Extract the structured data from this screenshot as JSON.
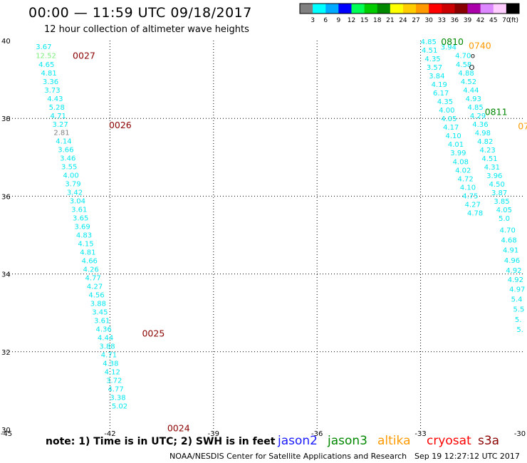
{
  "header": {
    "title": "00:00 — 11:59 UTC 09/18/2017",
    "subtitle": "12 hour collection of altimeter wave heights"
  },
  "footer": {
    "note": "note: 1) Time is in UTC; 2) SWH is in feet",
    "credit": "NOAA/NESDIS Center for Satellite Applications and Research",
    "timestamp": "Sep 19 12:27:12 UTC 2017"
  },
  "satellites": [
    {
      "name": "jason2",
      "color": "#1a1aff"
    },
    {
      "name": "jason3",
      "color": "#008800"
    },
    {
      "name": "altika",
      "color": "#ff9900"
    },
    {
      "name": "cryosat",
      "color": "#ff0000"
    },
    {
      "name": "s3a",
      "color": "#8b0000"
    }
  ],
  "chart_data": {
    "type": "scatter",
    "title": "00:00 — 11:59 UTC 09/18/2017",
    "subtitle": "12 hour collection of altimeter wave heights",
    "xlim": [
      -45,
      -30
    ],
    "ylim": [
      30,
      40
    ],
    "x_ticks": [
      "-45",
      "-42",
      "-39",
      "-36",
      "-33",
      "-30"
    ],
    "y_ticks": [
      "40",
      "38",
      "36",
      "34",
      "32",
      "30"
    ],
    "grid": true,
    "legend": {
      "unit": "(ft)",
      "bins": [
        "3",
        "6",
        "9",
        "12",
        "15",
        "18",
        "21",
        "24",
        "27",
        "30",
        "33",
        "36",
        "39",
        "42",
        "45",
        "70"
      ],
      "colors": [
        "#808080",
        "#00ffff",
        "#00aaff",
        "#0000ff",
        "#00ff55",
        "#00cc00",
        "#008800",
        "#ffff00",
        "#ffcc00",
        "#ff9900",
        "#ff0000",
        "#cc0000",
        "#880000",
        "#aa00aa",
        "#dd88ff",
        "#ffccff",
        "#000000"
      ]
    },
    "track_labels": [
      {
        "text": "0027",
        "x": -43.08,
        "y": 39.62,
        "color": "#8b0000"
      },
      {
        "text": "0026",
        "x": -42.03,
        "y": 37.84,
        "color": "#8b0000"
      },
      {
        "text": "0025",
        "x": -41.07,
        "y": 32.48,
        "color": "#8b0000"
      },
      {
        "text": "0024",
        "x": -40.34,
        "y": 30.05,
        "color": "#8b0000"
      },
      {
        "text": "0810",
        "x": -32.41,
        "y": 39.98,
        "color": "#008800"
      },
      {
        "text": "0811",
        "x": -31.14,
        "y": 38.18,
        "color": "#008800"
      },
      {
        "text": "0740",
        "x": -31.61,
        "y": 39.88,
        "color": "#ff9900"
      },
      {
        "text": "07",
        "x": -30.18,
        "y": 37.81,
        "color": "#ff9900"
      }
    ],
    "series": [
      {
        "name": "s3a",
        "color": "#00e8f0",
        "points": [
          {
            "x": -44.15,
            "y": 39.85,
            "v": "3.67"
          },
          {
            "x": -44.15,
            "y": 39.62,
            "v": "12.52",
            "color": "#7cf07c"
          },
          {
            "x": -44.07,
            "y": 39.4,
            "v": "4.65"
          },
          {
            "x": -44.0,
            "y": 39.18,
            "v": "4.81"
          },
          {
            "x": -43.95,
            "y": 38.96,
            "v": "3.36"
          },
          {
            "x": -43.9,
            "y": 38.74,
            "v": "3.73"
          },
          {
            "x": -43.82,
            "y": 38.52,
            "v": "4.43"
          },
          {
            "x": -43.77,
            "y": 38.3,
            "v": "5.28"
          },
          {
            "x": -43.73,
            "y": 38.08,
            "v": "4.71"
          },
          {
            "x": -43.67,
            "y": 37.86,
            "v": "3.27"
          },
          {
            "x": -43.63,
            "y": 37.65,
            "v": "2.81",
            "color": "#808080"
          },
          {
            "x": -43.57,
            "y": 37.43,
            "v": "4.14"
          },
          {
            "x": -43.51,
            "y": 37.21,
            "v": "3.66"
          },
          {
            "x": -43.45,
            "y": 36.99,
            "v": "3.46"
          },
          {
            "x": -43.41,
            "y": 36.77,
            "v": "3.55"
          },
          {
            "x": -43.36,
            "y": 36.55,
            "v": "4.00"
          },
          {
            "x": -43.3,
            "y": 36.33,
            "v": "3.79"
          },
          {
            "x": -43.25,
            "y": 36.11,
            "v": "3.42"
          },
          {
            "x": -43.17,
            "y": 35.89,
            "v": "3.04"
          },
          {
            "x": -43.12,
            "y": 35.67,
            "v": "3.61"
          },
          {
            "x": -43.08,
            "y": 35.45,
            "v": "3.65"
          },
          {
            "x": -43.03,
            "y": 35.23,
            "v": "3.69"
          },
          {
            "x": -42.98,
            "y": 35.01,
            "v": "4.83"
          },
          {
            "x": -42.93,
            "y": 34.79,
            "v": "4.15"
          },
          {
            "x": -42.87,
            "y": 34.57,
            "v": "4.81"
          },
          {
            "x": -42.82,
            "y": 34.35,
            "v": "4.66"
          },
          {
            "x": -42.78,
            "y": 34.13,
            "v": "4.26"
          },
          {
            "x": -42.72,
            "y": 33.91,
            "v": "4.77"
          },
          {
            "x": -42.67,
            "y": 33.69,
            "v": "4.27"
          },
          {
            "x": -42.62,
            "y": 33.47,
            "v": "4.56"
          },
          {
            "x": -42.57,
            "y": 33.25,
            "v": "3.88"
          },
          {
            "x": -42.52,
            "y": 33.03,
            "v": "3.45"
          },
          {
            "x": -42.46,
            "y": 32.81,
            "v": "3.61"
          },
          {
            "x": -42.41,
            "y": 32.59,
            "v": "4.36"
          },
          {
            "x": -42.36,
            "y": 32.37,
            "v": "4.44"
          },
          {
            "x": -42.31,
            "y": 32.15,
            "v": "3.88"
          },
          {
            "x": -42.26,
            "y": 31.93,
            "v": "4.71"
          },
          {
            "x": -42.21,
            "y": 31.71,
            "v": "4.38"
          },
          {
            "x": -42.16,
            "y": 31.49,
            "v": "4.12"
          },
          {
            "x": -42.11,
            "y": 31.27,
            "v": "3.72"
          },
          {
            "x": -42.06,
            "y": 31.05,
            "v": "4.77"
          },
          {
            "x": -42.0,
            "y": 30.83,
            "v": "3.38"
          },
          {
            "x": -41.95,
            "y": 30.61,
            "v": "5.02"
          }
        ]
      },
      {
        "name": "jason3",
        "color": "#00e8f0",
        "points": [
          {
            "x": -33.0,
            "y": 39.98,
            "v": "4.85"
          },
          {
            "x": -32.97,
            "y": 39.76,
            "v": "4.51"
          },
          {
            "x": -32.88,
            "y": 39.54,
            "v": "4.35"
          },
          {
            "x": -32.83,
            "y": 39.32,
            "v": "3.57"
          },
          {
            "x": -32.76,
            "y": 39.1,
            "v": "3.84"
          },
          {
            "x": -32.69,
            "y": 38.88,
            "v": "4.19"
          },
          {
            "x": -32.64,
            "y": 38.66,
            "v": "6.17"
          },
          {
            "x": -32.52,
            "y": 38.44,
            "v": "4.35"
          },
          {
            "x": -32.47,
            "y": 38.22,
            "v": "4.00"
          },
          {
            "x": -32.41,
            "y": 38.0,
            "v": "4.05"
          },
          {
            "x": -32.35,
            "y": 37.78,
            "v": "4.17"
          },
          {
            "x": -32.28,
            "y": 37.56,
            "v": "4.10"
          },
          {
            "x": -32.21,
            "y": 37.34,
            "v": "4.01"
          },
          {
            "x": -32.14,
            "y": 37.12,
            "v": "3.99"
          },
          {
            "x": -32.07,
            "y": 36.9,
            "v": "4.08"
          },
          {
            "x": -32.0,
            "y": 36.68,
            "v": "4.02"
          },
          {
            "x": -31.93,
            "y": 36.46,
            "v": "4.72"
          },
          {
            "x": -31.86,
            "y": 36.24,
            "v": "4.10"
          },
          {
            "x": -31.79,
            "y": 36.02,
            "v": "4.75"
          },
          {
            "x": -31.72,
            "y": 35.8,
            "v": "4.27"
          },
          {
            "x": -31.65,
            "y": 35.58,
            "v": "4.78"
          }
        ]
      },
      {
        "name": "altika",
        "color": "#00e8f0",
        "points": [
          {
            "x": -32.42,
            "y": 39.84,
            "v": "3.94"
          },
          {
            "x": -32.0,
            "y": 39.62,
            "v": "4.70"
          },
          {
            "x": -31.98,
            "y": 39.4,
            "v": "4.58"
          },
          {
            "x": -31.91,
            "y": 39.18,
            "v": "4.88"
          },
          {
            "x": -31.84,
            "y": 38.96,
            "v": "4.52"
          },
          {
            "x": -31.77,
            "y": 38.74,
            "v": "4.44"
          },
          {
            "x": -31.7,
            "y": 38.52,
            "v": "4.93"
          },
          {
            "x": -31.64,
            "y": 38.3,
            "v": "4.85"
          },
          {
            "x": -31.57,
            "y": 38.08,
            "v": "4.29"
          },
          {
            "x": -31.5,
            "y": 37.86,
            "v": "4.36"
          },
          {
            "x": -31.43,
            "y": 37.64,
            "v": "4.98"
          },
          {
            "x": -31.36,
            "y": 37.42,
            "v": "4.82"
          },
          {
            "x": -31.29,
            "y": 37.2,
            "v": "4.23"
          },
          {
            "x": -31.23,
            "y": 36.98,
            "v": "4.51"
          },
          {
            "x": -31.16,
            "y": 36.76,
            "v": "4.31"
          },
          {
            "x": -31.09,
            "y": 36.54,
            "v": "3.96"
          },
          {
            "x": -31.02,
            "y": 36.32,
            "v": "4.50"
          },
          {
            "x": -30.95,
            "y": 36.1,
            "v": "3.87"
          },
          {
            "x": -30.88,
            "y": 35.88,
            "v": "3.85"
          },
          {
            "x": -30.81,
            "y": 35.66,
            "v": "4.05"
          },
          {
            "x": -30.74,
            "y": 35.44,
            "v": "5.0"
          },
          {
            "x": -30.71,
            "y": 35.14,
            "v": "4.70"
          },
          {
            "x": -30.67,
            "y": 34.88,
            "v": "4.68"
          },
          {
            "x": -30.62,
            "y": 34.62,
            "v": "4.91"
          },
          {
            "x": -30.58,
            "y": 34.36,
            "v": "4.96"
          },
          {
            "x": -30.53,
            "y": 34.1,
            "v": "4.92"
          },
          {
            "x": -30.48,
            "y": 33.86,
            "v": "4.92"
          },
          {
            "x": -30.43,
            "y": 33.62,
            "v": "4.97"
          },
          {
            "x": -30.38,
            "y": 33.36,
            "v": "5.4"
          },
          {
            "x": -30.32,
            "y": 33.1,
            "v": "5.5"
          },
          {
            "x": -30.27,
            "y": 32.84,
            "v": "5."
          },
          {
            "x": -30.22,
            "y": 32.58,
            "v": "5."
          }
        ]
      }
    ],
    "other_marks": [
      {
        "text": "o",
        "x": -31.55,
        "y": 39.62,
        "color": "#000000"
      },
      {
        "text": "O",
        "x": -31.6,
        "y": 39.32,
        "color": "#000000"
      }
    ]
  }
}
